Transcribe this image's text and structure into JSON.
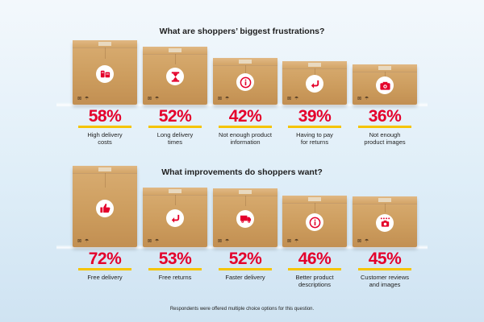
{
  "chart_data": [
    {
      "type": "bar",
      "title": "What are shoppers’ biggest frustrations?",
      "unit": "%",
      "categories": [
        "High delivery costs",
        "Long delivery times",
        "Not enough product information",
        "Having to pay for returns",
        "Not enough product images"
      ],
      "values": [
        58,
        52,
        42,
        39,
        36
      ],
      "value_labels": [
        "58%",
        "52%",
        "42%",
        "39%",
        "36%"
      ],
      "display_labels": [
        "High delivery\ncosts",
        "Long delivery\ntimes",
        "Not enough product\ninformation",
        "Having to pay\nfor returns",
        "Not enough\nproduct images"
      ],
      "icons": [
        "coins-icon",
        "hourglass-icon",
        "info-icon",
        "return-arrow-icon",
        "camera-icon"
      ]
    },
    {
      "type": "bar",
      "title": "What improvements do shoppers want?",
      "unit": "%",
      "categories": [
        "Free delivery",
        "Free returns",
        "Faster delivery",
        "Better product descriptions",
        "Customer reviews and images"
      ],
      "values": [
        72,
        53,
        52,
        46,
        45
      ],
      "value_labels": [
        "72%",
        "53%",
        "52%",
        "46%",
        "45%"
      ],
      "display_labels": [
        "Free delivery",
        "Free returns",
        "Faster delivery",
        "Better product\ndescriptions",
        "Customer reviews\nand images"
      ],
      "icons": [
        "thumbs-up-icon",
        "return-arrow-icon",
        "delivery-truck-icon",
        "info-icon",
        "star-camera-icon"
      ]
    }
  ],
  "footnote": "Respondents were offered multiple choice options for this question.",
  "box_marks": "⊠ ☂",
  "colors": {
    "accent_red": "#e4002b",
    "underline_yellow": "#f5c400",
    "box_brown": "#cc9c5d"
  }
}
